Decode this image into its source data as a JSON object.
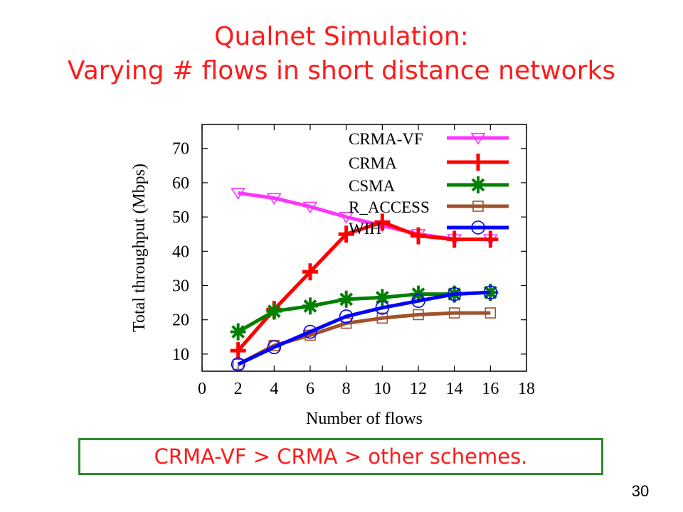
{
  "slide": {
    "title_line1": "Qualnet Simulation:",
    "title_line2": "Varying # flows in short distance networks",
    "conclusion": "CRMA-VF > CRMA > other schemes.",
    "page_number": "30"
  },
  "chart_data": {
    "type": "line",
    "title": "",
    "xlabel": "Number of flows",
    "ylabel": "Total throughput (Mbps)",
    "xlim": [
      0,
      18
    ],
    "ylim": [
      5,
      77
    ],
    "xticks": [
      0,
      2,
      4,
      6,
      8,
      10,
      12,
      14,
      16,
      18
    ],
    "yticks": [
      10,
      20,
      30,
      40,
      50,
      60,
      70
    ],
    "grid": false,
    "legend_position": "top-right",
    "x": [
      2,
      4,
      6,
      8,
      10,
      12,
      14,
      16
    ],
    "series": [
      {
        "name": "CRMA-VF",
        "color": "#ff33ff",
        "marker": "triangle-down",
        "values": [
          57,
          55.5,
          53,
          50,
          47.5,
          45,
          43.5,
          43.5
        ]
      },
      {
        "name": "CRMA",
        "color": "#ff0000",
        "marker": "plus",
        "values": [
          11,
          23,
          34,
          45,
          48.5,
          44.5,
          43.5,
          43.5
        ]
      },
      {
        "name": "CSMA",
        "color": "#008000",
        "marker": "star",
        "values": [
          16.5,
          22.5,
          24,
          26,
          26.5,
          27.5,
          27.5,
          28
        ]
      },
      {
        "name": "R_ACCESS",
        "color": "#a0522d",
        "marker": "square",
        "values": [
          7,
          12.5,
          15.5,
          19,
          20.5,
          21.5,
          22,
          22
        ]
      },
      {
        "name": "WIH",
        "color": "#0000ff",
        "marker": "circle",
        "values": [
          7,
          12,
          16.5,
          21,
          23.5,
          25.5,
          27.5,
          28
        ]
      }
    ]
  }
}
